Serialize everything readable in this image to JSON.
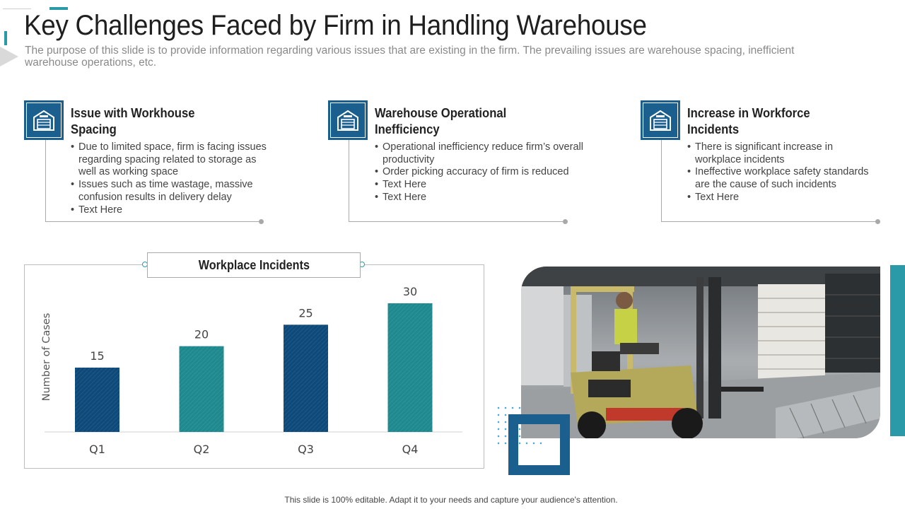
{
  "slide": {
    "title": "Key Challenges Faced by Firm in Handling Warehouse",
    "subtitle": "The purpose of this slide is to provide information regarding various issues that are existing in the firm. The prevailing issues are warehouse spacing, inefficient warehouse operations, etc.",
    "footer": "This slide is 100% editable. Adapt it to your needs and capture your audience's attention."
  },
  "issues": [
    {
      "title": "Issue with Workhouse Spacing",
      "icon": "warehouse-icon",
      "bullets": [
        "Due to limited space, firm is facing issues regarding spacing related to storage as well as working space",
        "Issues such as time wastage, massive confusion results in delivery delay",
        "Text Here"
      ]
    },
    {
      "title": "Warehouse Operational Inefficiency",
      "icon": "warehouse-icon",
      "bullets": [
        "Operational inefficiency reduce firm’s overall productivity",
        "Order picking accuracy of firm is reduced",
        "Text Here",
        "Text Here"
      ]
    },
    {
      "title": "Increase in Workforce Incidents",
      "icon": "warehouse-icon",
      "bullets": [
        "There is significant increase in workplace incidents",
        "Ineffective workplace safety standards are the cause of such incidents",
        "Text Here"
      ]
    }
  ],
  "colors": {
    "accent_teal": "#2a9aa8",
    "accent_blue": "#1b5f8f",
    "bar_dark": "#0d4a7a",
    "bar_teal": "#1e8a8f"
  },
  "chart_data": {
    "type": "bar",
    "title": "Workplace Incidents",
    "categories": [
      "Q1",
      "Q2",
      "Q3",
      "Q4"
    ],
    "values": [
      15,
      20,
      25,
      30
    ],
    "bar_colors": [
      "#0d4a7a",
      "#1e8a8f",
      "#0d4a7a",
      "#1e8a8f"
    ],
    "xlabel": "",
    "ylabel": "Number of Cases",
    "ylim": [
      0,
      30
    ],
    "grid": false
  },
  "photo": {
    "subject": "forklift-photo"
  }
}
